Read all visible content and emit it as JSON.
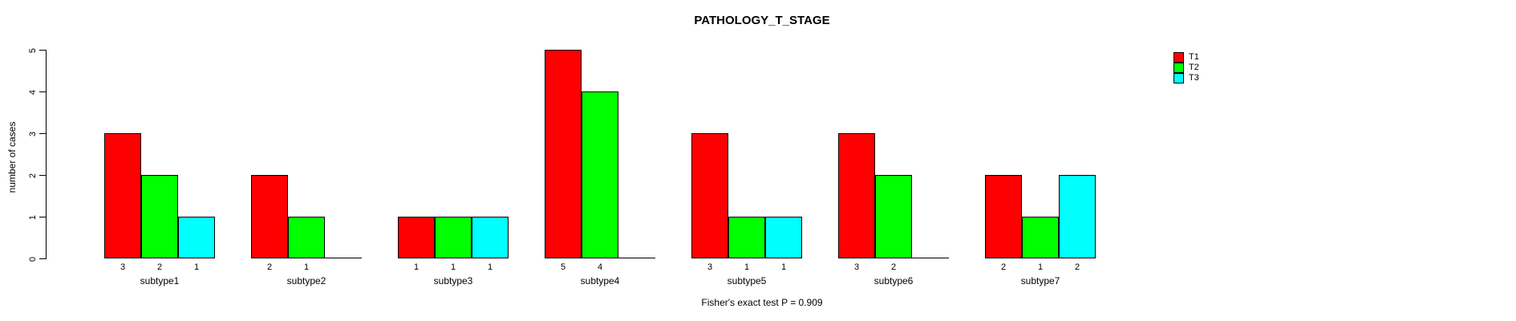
{
  "chart_data": {
    "type": "bar",
    "title": "PATHOLOGY_T_STAGE",
    "xlabel": "",
    "ylabel": "number of cases",
    "footer": "Fisher's exact test P = 0.909",
    "categories": [
      "subtype1",
      "subtype2",
      "subtype3",
      "subtype4",
      "subtype5",
      "subtype6",
      "subtype7"
    ],
    "series": [
      {
        "name": "T1",
        "color": "#FF0000",
        "values": [
          3,
          2,
          1,
          5,
          3,
          3,
          2
        ]
      },
      {
        "name": "T2",
        "color": "#00FF00",
        "values": [
          2,
          1,
          1,
          4,
          1,
          2,
          1
        ]
      },
      {
        "name": "T3",
        "color": "#00FFFF",
        "values": [
          1,
          0,
          1,
          0,
          1,
          0,
          2
        ]
      }
    ],
    "ylim": [
      0,
      5
    ],
    "yticks": [
      0,
      1,
      2,
      3,
      4,
      5
    ],
    "bar_value_labels": true,
    "grid": false,
    "legend": {
      "position": "top-right",
      "entries": [
        {
          "label": "T1",
          "color": "#FF0000"
        },
        {
          "label": "T2",
          "color": "#00FF00"
        },
        {
          "label": "T3",
          "color": "#00FFFF"
        }
      ]
    }
  }
}
